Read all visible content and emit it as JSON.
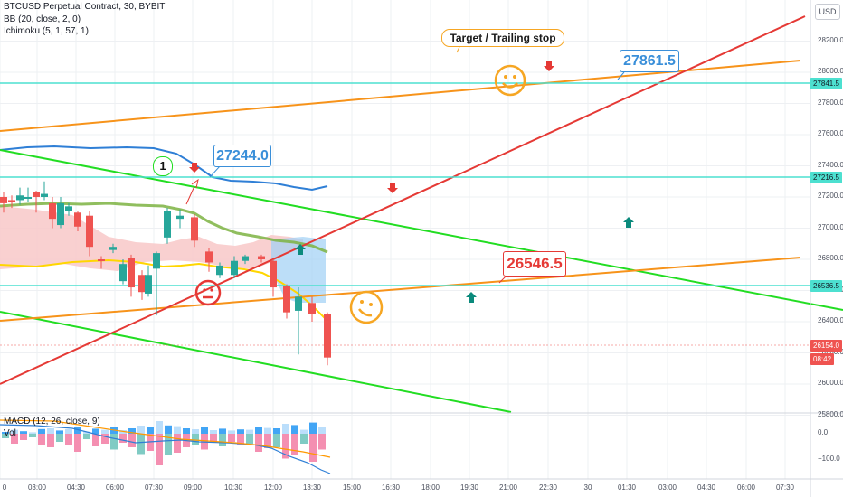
{
  "header": {
    "symbol": "BTCUSD Perpetual Contract, 30, BYBIT",
    "bb": "BB (20, close, 2, 0)",
    "ichimoku": "Ichimoku (5, 1, 57, 1)",
    "macd": "MACD (12, 26, close, 9)",
    "vol": "Vol",
    "currency": "USD"
  },
  "price_axis": {
    "labels": [
      "28200.0",
      "28000.0",
      "27800.0",
      "27600.0",
      "27400.0",
      "27200.0",
      "27000.0",
      "26800.0",
      "26600.0",
      "26400.0",
      "26200.0",
      "26000.0",
      "25800.0"
    ],
    "tags": [
      {
        "text": "27841.5",
        "bg": "#4de0d0",
        "fg": "#131722"
      },
      {
        "text": "27216.5",
        "bg": "#4de0d0",
        "fg": "#131722"
      },
      {
        "text": "26536.5",
        "bg": "#4de0d0",
        "fg": "#131722"
      },
      {
        "text": "26154.0",
        "bg": "#ef5350",
        "fg": "#ffffff"
      },
      {
        "text": "08:42",
        "bg": "#ef5350",
        "fg": "#ffffff"
      }
    ]
  },
  "macd_axis": {
    "labels": [
      "0.0",
      "−100.0"
    ]
  },
  "time_axis": {
    "labels": [
      "0",
      "03:00",
      "04:30",
      "06:00",
      "07:30",
      "09:00",
      "10:30",
      "12:00",
      "13:30",
      "15:00",
      "16:30",
      "18:00",
      "19:30",
      "21:00",
      "22:30",
      "30",
      "01:30",
      "03:00",
      "04:30",
      "06:00",
      "07:30"
    ]
  },
  "annotations": {
    "target": "Target / Trailing stop",
    "high_price": "27861.5",
    "mid_price": "27244.0",
    "low_price": "26546.5",
    "marker": "1"
  },
  "colors": {
    "teal_level": "#4de0d0",
    "orange_line": "#f7931a",
    "red_line": "#e53935",
    "green_line": "#22dd22",
    "up": "#26a69a",
    "down": "#ef5350",
    "blue_callout": "#3a8fd9",
    "red_callout": "#e53935"
  },
  "icons": [
    "smiley-face-icon",
    "neutral-face-icon",
    "wry-face-icon",
    "down-arrow-icon",
    "up-arrow-icon"
  ]
}
